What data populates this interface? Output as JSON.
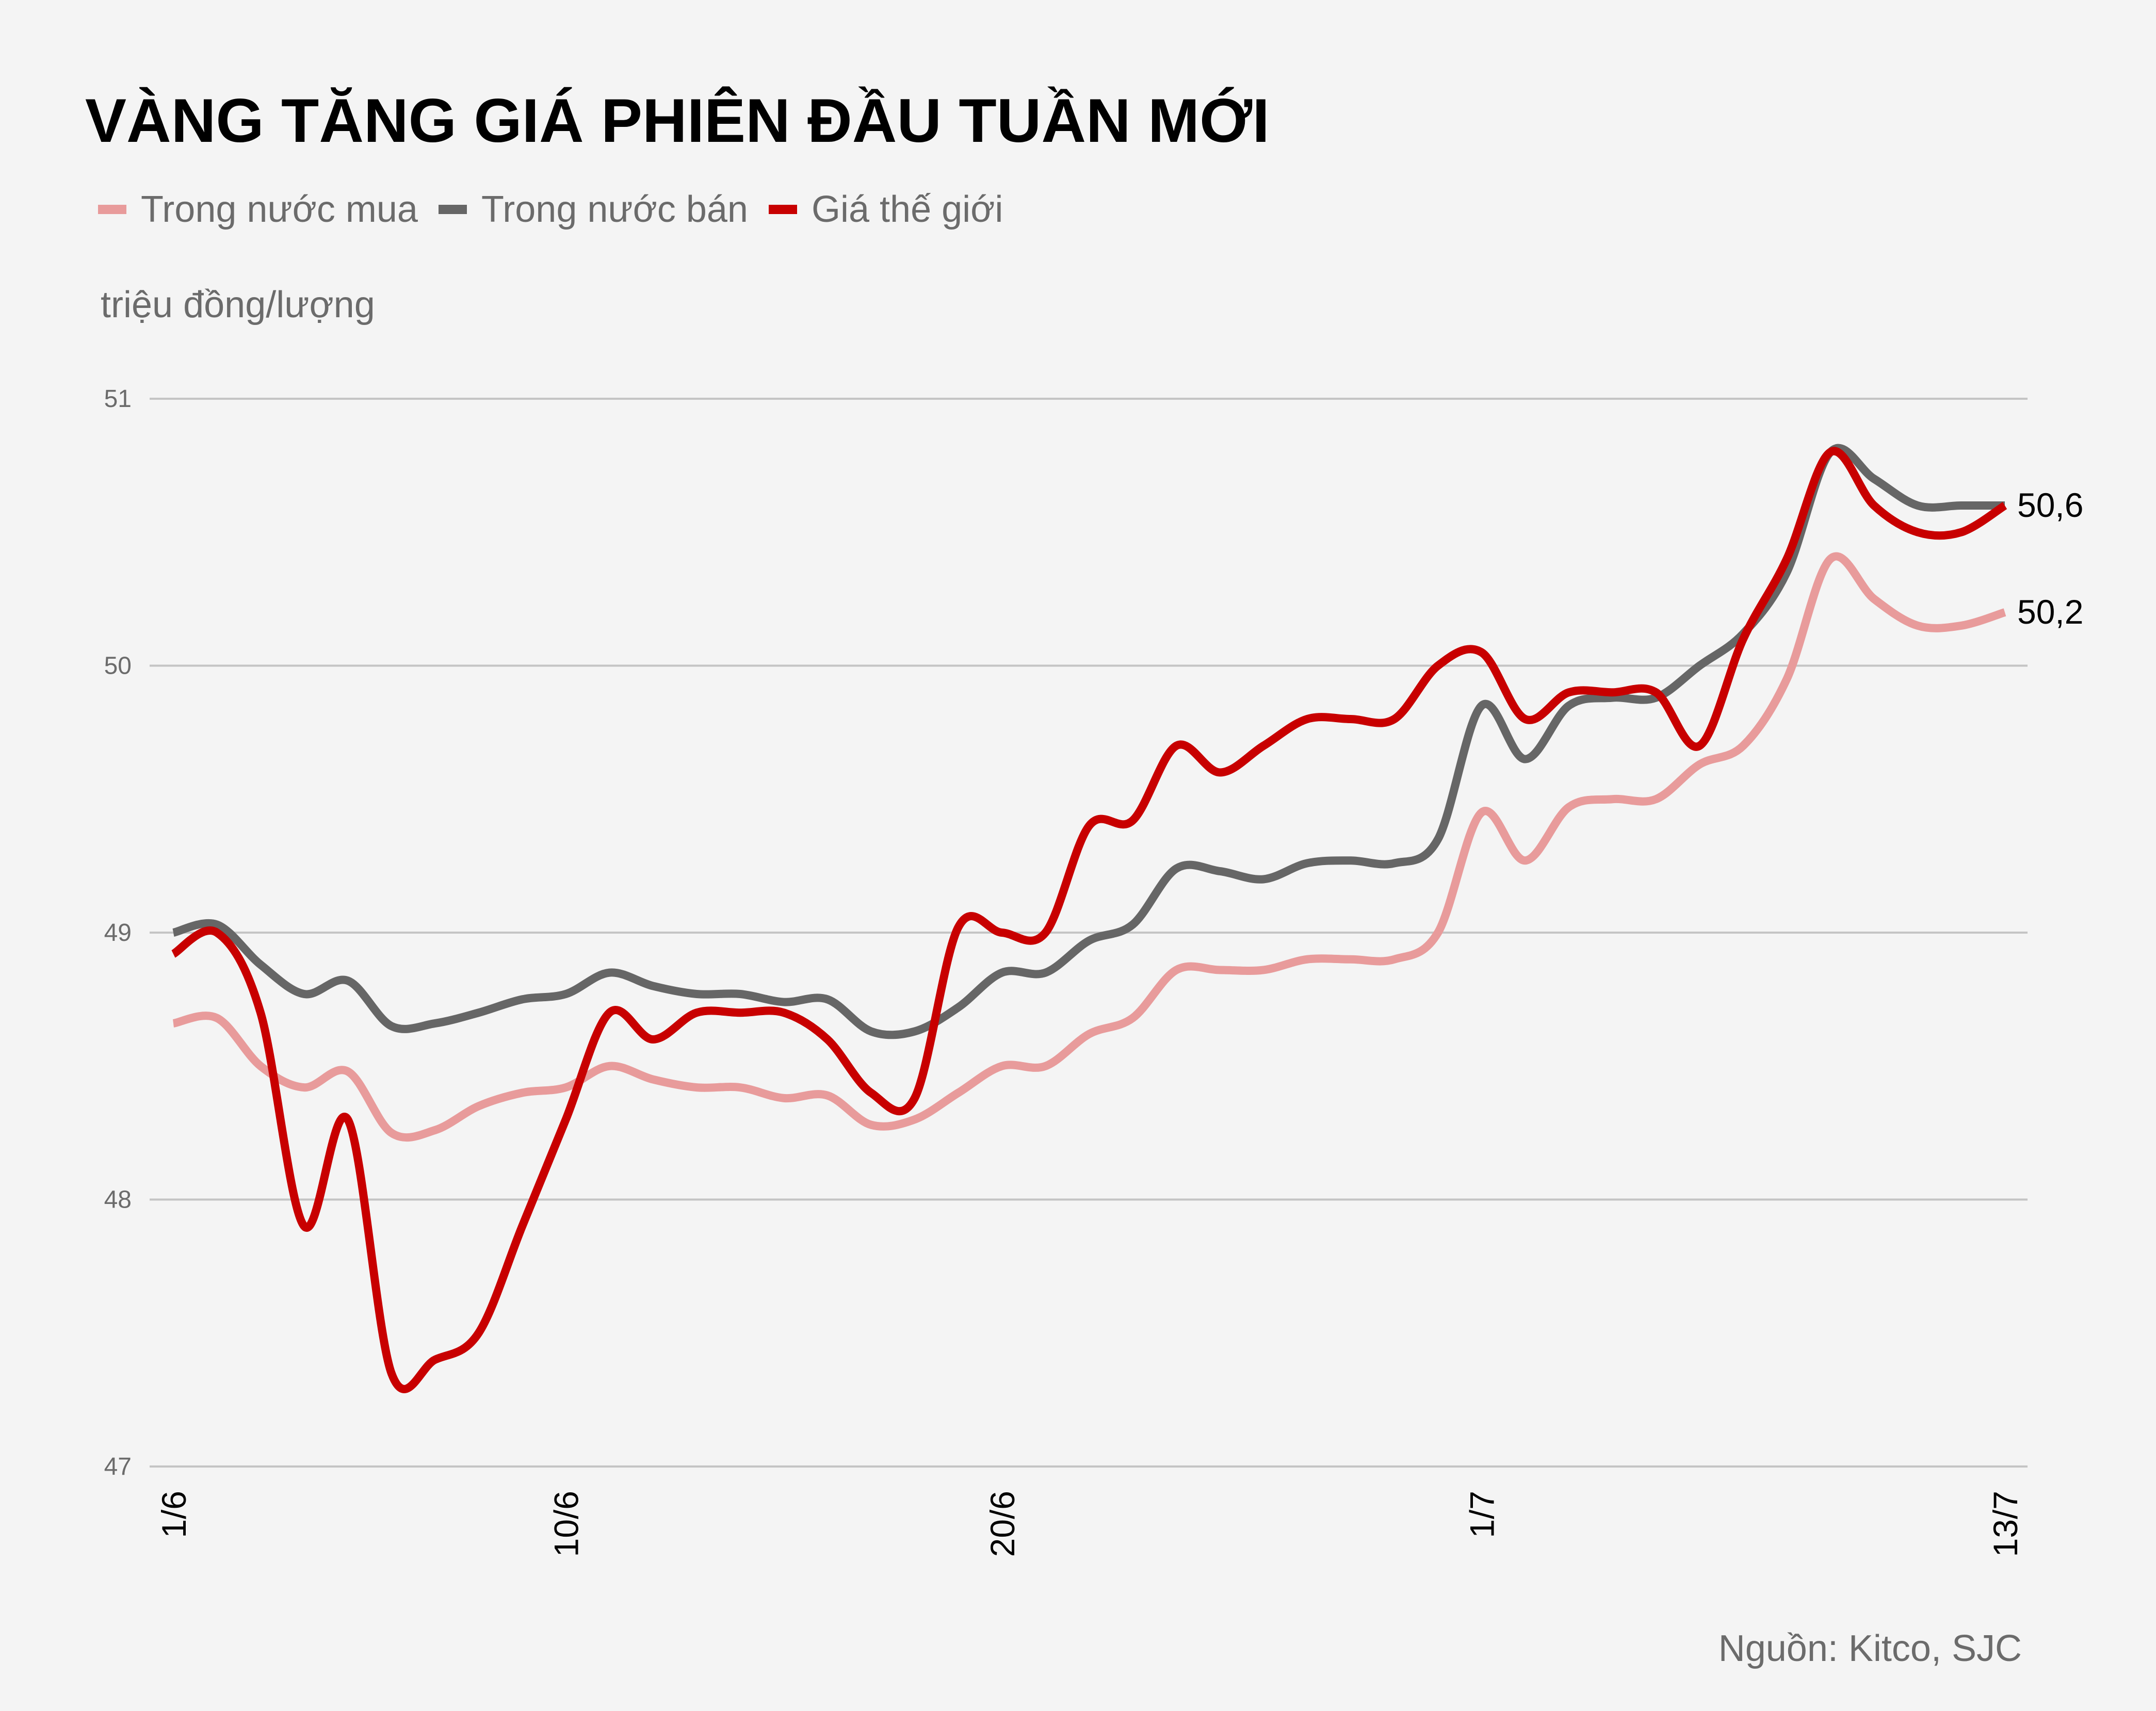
{
  "title": "VÀNG TĂNG GIÁ PHIÊN ĐẦU TUẦN MỚI",
  "unit_label": "triệu đồng/lượng",
  "source": "Nguồn: Kitco, SJC",
  "legend": [
    {
      "label": "Trong nước mua",
      "color": "#e89b9b"
    },
    {
      "label": "Trong nước bán",
      "color": "#666666"
    },
    {
      "label": "Giá thế giới",
      "color": "#c80000"
    }
  ],
  "end_labels": {
    "high": "50,6",
    "low": "50,2"
  },
  "chart_data": {
    "type": "line",
    "title": "VÀNG TĂNG GIÁ PHIÊN ĐẦU TUẦN MỚI",
    "xlabel": "",
    "ylabel": "triệu đồng/lượng",
    "ylim": [
      47,
      51
    ],
    "yticks": [
      47,
      48,
      49,
      50,
      51
    ],
    "xtick_labels": [
      "1/6",
      "10/6",
      "20/6",
      "1/7",
      "13/7"
    ],
    "xtick_index": [
      0,
      9,
      19,
      30,
      42
    ],
    "grid": true,
    "legend_position": "top",
    "x": [
      "1/6",
      "2/6",
      "3/6",
      "4/6",
      "5/6",
      "6/6",
      "7/6",
      "8/6",
      "9/6",
      "10/6",
      "11/6",
      "12/6",
      "13/6",
      "14/6",
      "15/6",
      "16/6",
      "17/6",
      "18/6",
      "19/6",
      "20/6",
      "21/6",
      "22/6",
      "23/6",
      "24/6",
      "25/6",
      "26/6",
      "27/6",
      "28/6",
      "29/6",
      "30/6",
      "1/7",
      "2/7",
      "3/7",
      "4/7",
      "5/7",
      "6/7",
      "7/7",
      "8/7",
      "9/7",
      "10/7",
      "11/7",
      "12/7",
      "13/7"
    ],
    "series": [
      {
        "name": "Trong nước mua",
        "color": "#e89b9b",
        "values": [
          48.66,
          48.68,
          48.5,
          48.42,
          48.48,
          48.25,
          48.26,
          48.35,
          48.4,
          48.42,
          48.5,
          48.45,
          48.42,
          48.42,
          48.38,
          48.39,
          48.28,
          48.3,
          48.4,
          48.5,
          48.5,
          48.62,
          48.68,
          48.86,
          48.86,
          48.86,
          48.9,
          48.9,
          48.9,
          49.0,
          49.45,
          49.27,
          49.47,
          49.5,
          49.5,
          49.63,
          49.7,
          49.95,
          50.4,
          50.25,
          50.15,
          50.15,
          50.2
        ]
      },
      {
        "name": "Trong nước bán",
        "color": "#666666",
        "values": [
          49.0,
          49.03,
          48.88,
          48.77,
          48.82,
          48.65,
          48.66,
          48.7,
          48.75,
          48.77,
          48.85,
          48.8,
          48.77,
          48.77,
          48.74,
          48.75,
          48.63,
          48.63,
          48.72,
          48.85,
          48.85,
          48.97,
          49.03,
          49.24,
          49.23,
          49.2,
          49.26,
          49.27,
          49.26,
          49.35,
          49.85,
          49.65,
          49.85,
          49.88,
          49.88,
          50.0,
          50.12,
          50.35,
          50.8,
          50.7,
          50.6,
          50.6,
          50.6
        ]
      },
      {
        "name": "Giá thế giới",
        "color": "#c80000",
        "values": [
          48.92,
          49.0,
          48.7,
          47.9,
          48.3,
          47.35,
          47.4,
          47.5,
          47.9,
          48.3,
          48.7,
          48.6,
          48.7,
          48.7,
          48.7,
          48.6,
          48.4,
          48.38,
          49.02,
          49.0,
          49.0,
          49.4,
          49.42,
          49.7,
          49.6,
          49.7,
          49.8,
          49.8,
          49.8,
          50.0,
          50.05,
          49.8,
          49.9,
          49.9,
          49.9,
          49.7,
          50.1,
          50.4,
          50.8,
          50.6,
          50.5,
          50.5,
          50.6
        ]
      }
    ]
  }
}
